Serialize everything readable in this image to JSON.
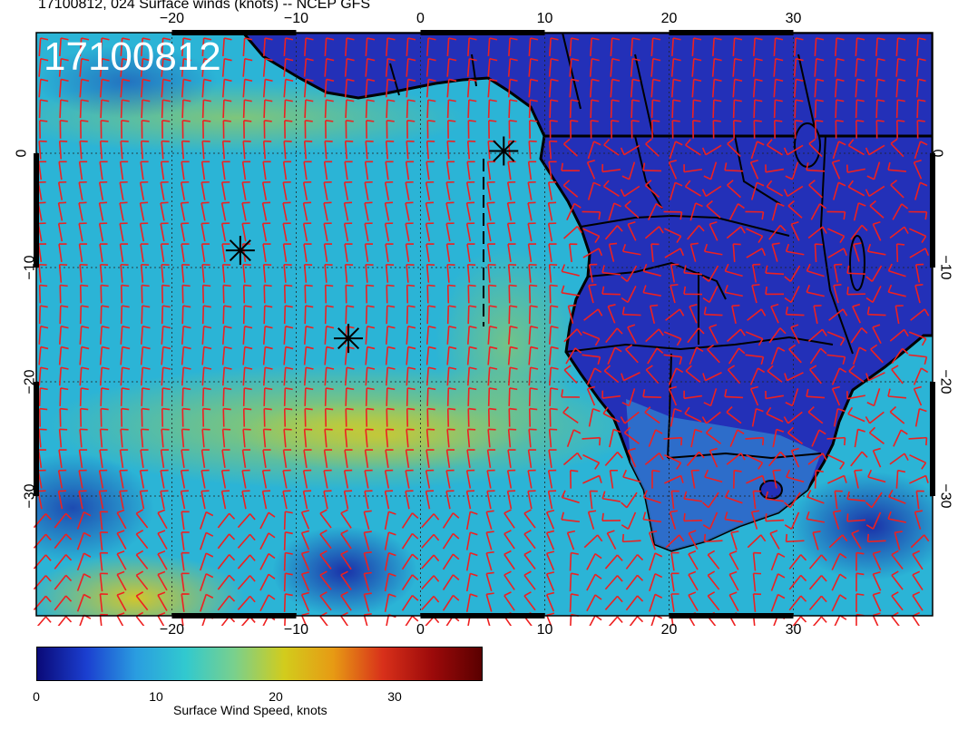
{
  "title": "17100812, 024 Surface winds (knots) -- NCEP GFS",
  "stamp": "17100812",
  "colors": {
    "ocean_base": "#2bb4d6",
    "land_base": "#2330b8",
    "barb": "#ee2020",
    "coast": "#000000"
  },
  "axes": {
    "lon_ticks": [
      "−20",
      "−10",
      "0",
      "10",
      "20",
      "30"
    ],
    "lat_ticks": [
      "0",
      "−10",
      "−20",
      "−30"
    ]
  },
  "colorbar": {
    "label": "Surface Wind Speed, knots",
    "ticks": [
      "0",
      "10",
      "20",
      "30"
    ],
    "colors": [
      "#0a0a78",
      "#1b3fd0",
      "#2a9de0",
      "#31c9cf",
      "#7ad08c",
      "#d2cc1c",
      "#e79a14",
      "#d8301a",
      "#9c0a0a",
      "#5a0000"
    ]
  },
  "markers": [
    {
      "name": "storm-marker-1",
      "lon": -14.5,
      "lat": -8.5
    },
    {
      "name": "storm-marker-2",
      "lon": -5.8,
      "lat": -16.2
    },
    {
      "name": "storm-marker-3",
      "lon": 6.7,
      "lat": 0.2
    }
  ]
}
